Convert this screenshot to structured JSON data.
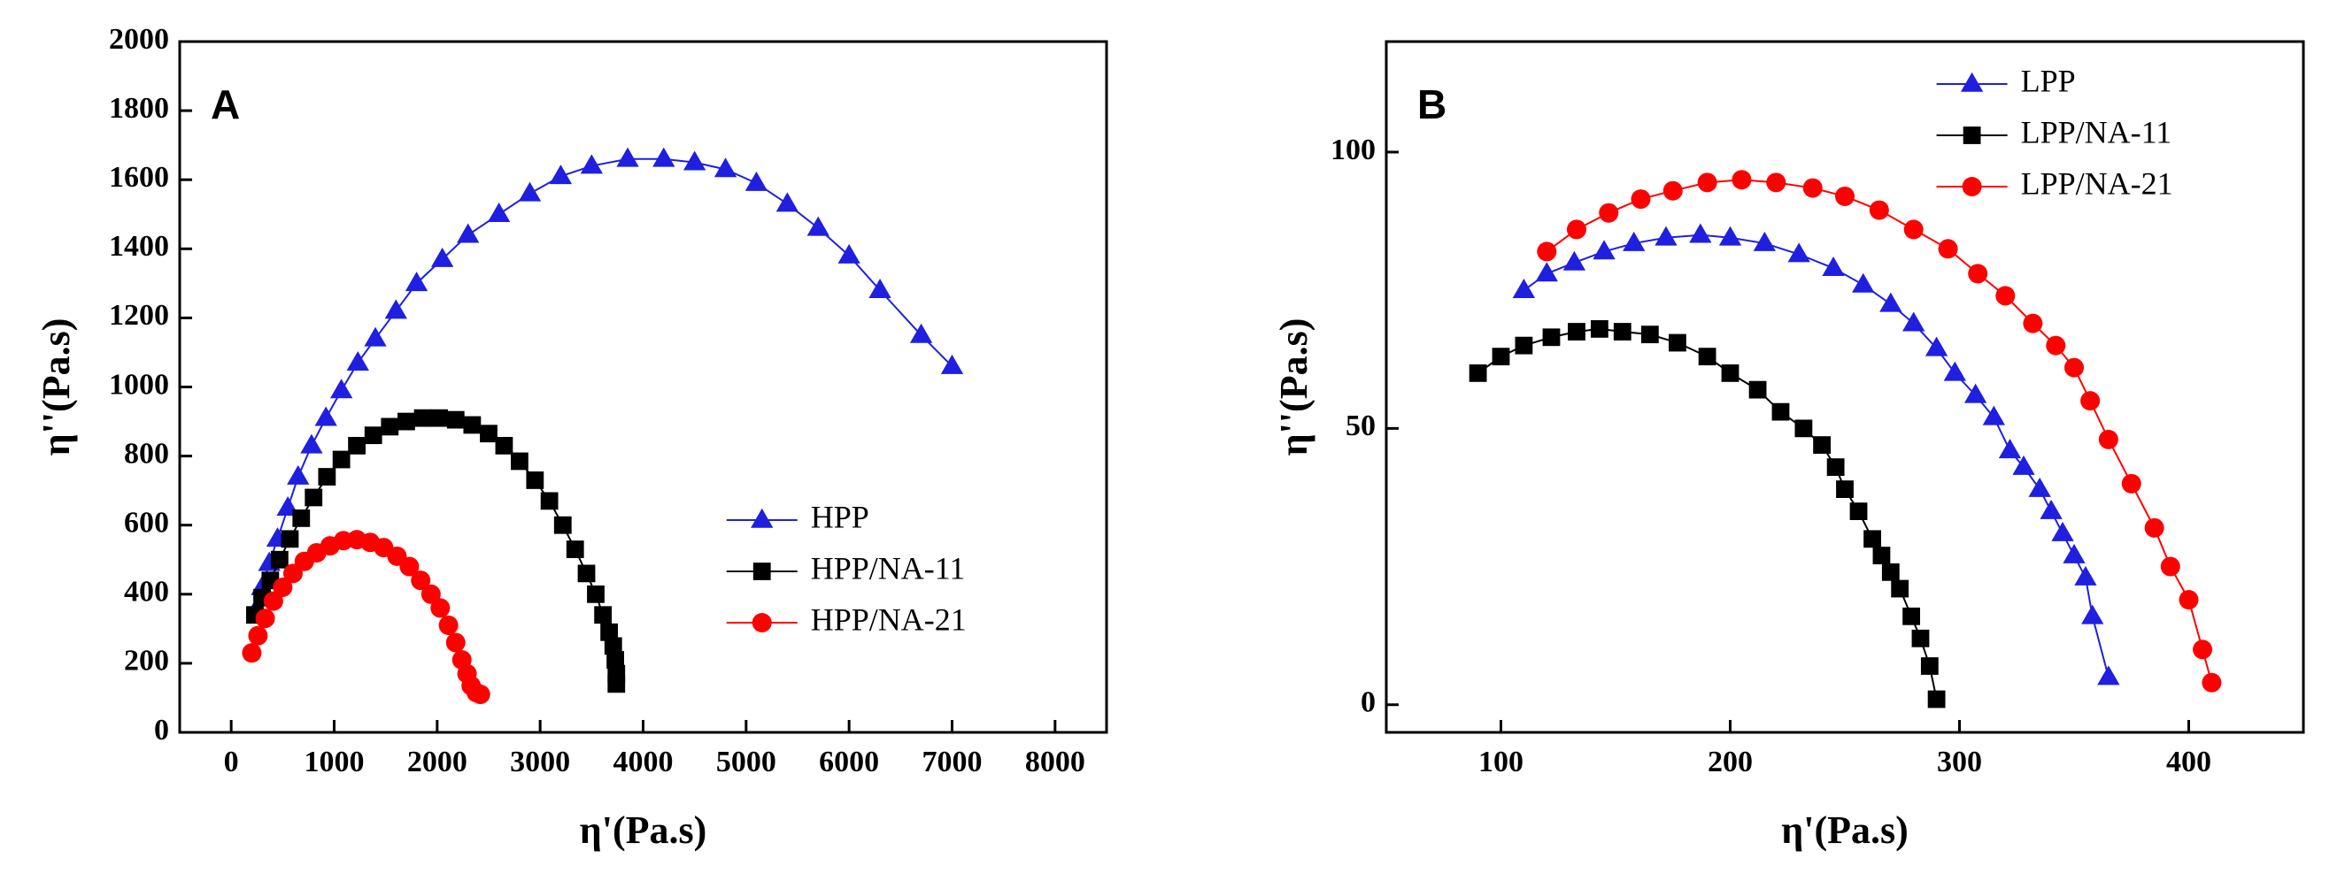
{
  "chart_data": [
    {
      "type": "line",
      "title": "A",
      "xlabel": "η'(Pa.s)",
      "ylabel": "η''(Pa.s)",
      "xlim": [
        -500,
        8500
      ],
      "ylim": [
        0,
        2000
      ],
      "xticks": [
        0,
        1000,
        2000,
        3000,
        4000,
        5000,
        6000,
        7000,
        8000
      ],
      "yticks": [
        0,
        200,
        400,
        600,
        800,
        1000,
        1200,
        1400,
        1600,
        1800,
        2000
      ],
      "legend": "lower right",
      "series": [
        {
          "name": "HPP",
          "color": "#1f1fe0",
          "marker": "triangle",
          "x": [
            250,
            300,
            370,
            450,
            550,
            650,
            780,
            920,
            1070,
            1230,
            1400,
            1600,
            1800,
            2050,
            2300,
            2600,
            2900,
            3200,
            3500,
            3850,
            4200,
            4500,
            4800,
            5100,
            5400,
            5700,
            6000,
            6300,
            6700,
            7000
          ],
          "values": [
            360,
            420,
            490,
            560,
            650,
            740,
            830,
            910,
            990,
            1070,
            1140,
            1220,
            1300,
            1370,
            1440,
            1500,
            1560,
            1610,
            1640,
            1660,
            1660,
            1650,
            1630,
            1590,
            1530,
            1460,
            1380,
            1280,
            1150,
            1060
          ]
        },
        {
          "name": "HPP/NA-11",
          "color": "#000000",
          "marker": "square",
          "x": [
            230,
            300,
            380,
            470,
            570,
            680,
            800,
            930,
            1070,
            1220,
            1380,
            1540,
            1700,
            1860,
            2020,
            2180,
            2340,
            2500,
            2650,
            2800,
            2950,
            3090,
            3220,
            3340,
            3450,
            3540,
            3610,
            3670,
            3710,
            3730,
            3740,
            3740
          ],
          "values": [
            340,
            390,
            440,
            500,
            560,
            620,
            680,
            740,
            790,
            830,
            860,
            885,
            900,
            910,
            910,
            905,
            890,
            865,
            830,
            785,
            730,
            670,
            600,
            530,
            460,
            400,
            340,
            290,
            250,
            210,
            170,
            140
          ]
        },
        {
          "name": "HPP/NA-21",
          "color": "#ff0000",
          "marker": "circle",
          "x": [
            200,
            260,
            330,
            410,
            500,
            600,
            710,
            830,
            960,
            1090,
            1220,
            1350,
            1480,
            1610,
            1730,
            1840,
            1940,
            2030,
            2110,
            2180,
            2240,
            2290,
            2330,
            2380,
            2420
          ],
          "values": [
            230,
            280,
            330,
            380,
            420,
            460,
            495,
            520,
            540,
            555,
            558,
            550,
            535,
            510,
            480,
            440,
            400,
            360,
            310,
            260,
            210,
            170,
            135,
            115,
            110
          ]
        }
      ]
    },
    {
      "type": "line",
      "title": "B",
      "xlabel": "η'(Pa.s)",
      "ylabel": "η''(Pa.s)",
      "xlim": [
        50,
        450
      ],
      "ylim": [
        -5,
        120
      ],
      "xticks": [
        100,
        200,
        300,
        400
      ],
      "yticks": [
        0,
        50,
        100
      ],
      "legend": "upper right",
      "series": [
        {
          "name": "LPP",
          "color": "#1f1fe0",
          "marker": "triangle",
          "x": [
            110,
            120,
            132,
            145,
            158,
            172,
            187,
            200,
            215,
            230,
            245,
            258,
            270,
            280,
            290,
            298,
            307,
            315,
            322,
            328,
            335,
            340,
            345,
            350,
            355,
            358,
            365
          ],
          "values": [
            75,
            78,
            80,
            82,
            83.5,
            84.5,
            85,
            84.5,
            83.5,
            81.5,
            79,
            76,
            72.5,
            69,
            64.5,
            60,
            56,
            52,
            46,
            43,
            39,
            35,
            31,
            27,
            23,
            16,
            5
          ]
        },
        {
          "name": "LPP/NA-11",
          "color": "#000000",
          "marker": "square",
          "x": [
            90,
            100,
            110,
            122,
            133,
            143,
            153,
            165,
            177,
            190,
            200,
            212,
            222,
            232,
            240,
            246,
            250,
            256,
            262,
            266,
            270,
            274,
            279,
            283,
            287,
            290
          ],
          "values": [
            60,
            63,
            65,
            66.5,
            67.5,
            68,
            67.5,
            67,
            65.5,
            63,
            60,
            57,
            53,
            50,
            47,
            43,
            39,
            35,
            30,
            27,
            24,
            21,
            16,
            12,
            7,
            1
          ]
        },
        {
          "name": "LPP/NA-21",
          "color": "#ff0000",
          "marker": "circle",
          "x": [
            120,
            133,
            147,
            161,
            175,
            190,
            205,
            220,
            236,
            250,
            265,
            280,
            295,
            308,
            320,
            332,
            342,
            350,
            357,
            365,
            375,
            385,
            392,
            400,
            406,
            410
          ],
          "values": [
            82,
            86,
            89,
            91.5,
            93,
            94.5,
            95,
            94.5,
            93.5,
            92,
            89.5,
            86,
            82.5,
            78,
            74,
            69,
            65,
            61,
            55,
            48,
            40,
            32,
            25,
            19,
            10,
            4
          ]
        }
      ]
    }
  ]
}
